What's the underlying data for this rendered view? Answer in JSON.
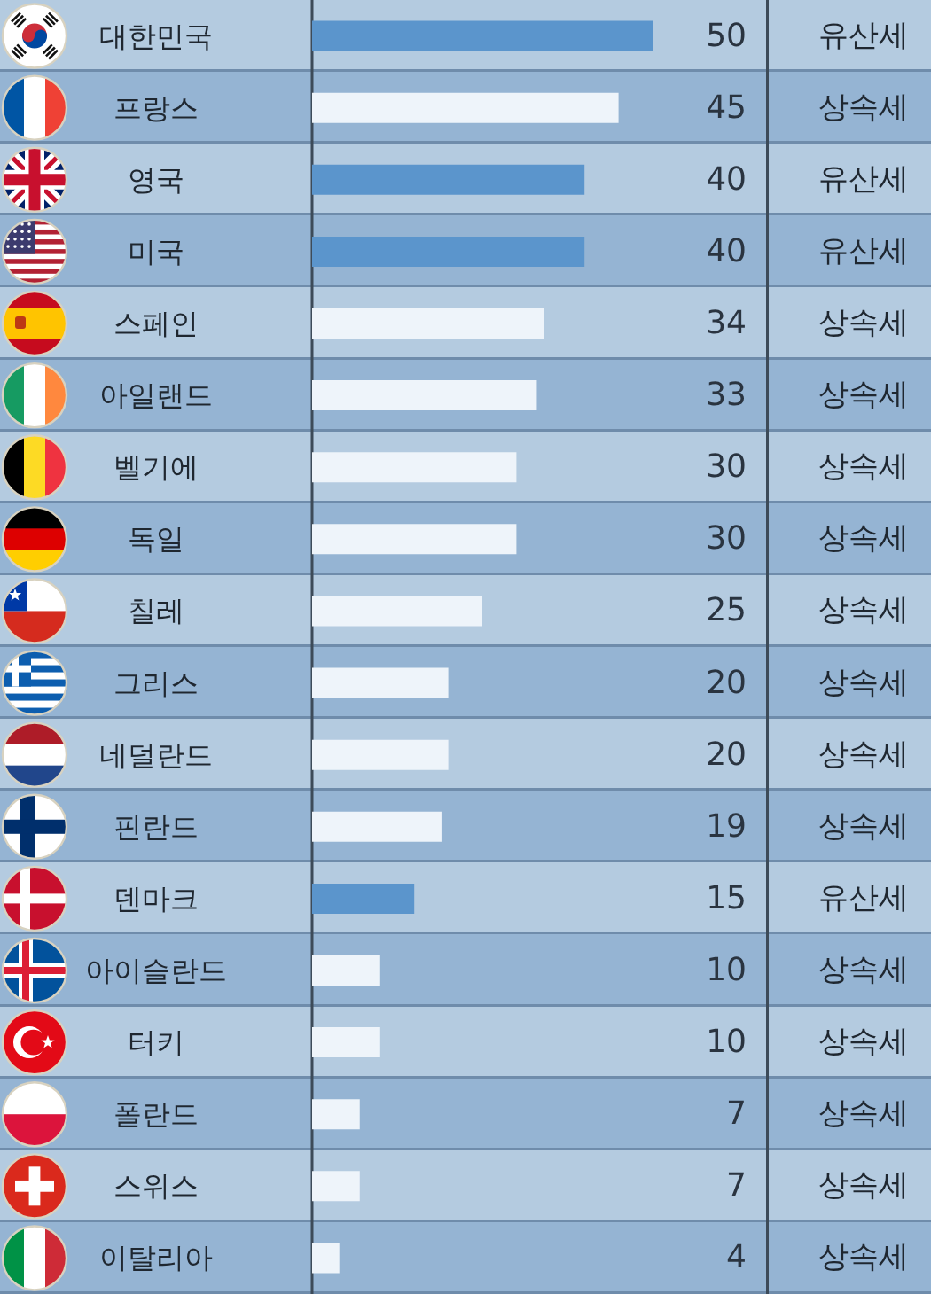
{
  "chart_data": {
    "type": "bar",
    "orientation": "horizontal",
    "categories": [
      "대한민국",
      "프랑스",
      "영국",
      "미국",
      "스페인",
      "아일랜드",
      "벨기에",
      "독일",
      "칠레",
      "그리스",
      "네덜란드",
      "핀란드",
      "덴마크",
      "아이슬란드",
      "터키",
      "폴란드",
      "스위스",
      "이탈리아"
    ],
    "values": [
      50,
      45,
      40,
      40,
      34,
      33,
      30,
      30,
      25,
      20,
      20,
      19,
      15,
      10,
      10,
      7,
      7,
      4
    ],
    "colors": [
      "#5b95cc",
      "#eef4fa",
      "#5b95cc",
      "#5b95cc",
      "#eef4fa",
      "#eef4fa",
      "#eef4fa",
      "#eef4fa",
      "#eef4fa",
      "#eef4fa",
      "#eef4fa",
      "#eef4fa",
      "#5b95cc",
      "#eef4fa",
      "#eef4fa",
      "#eef4fa",
      "#eef4fa",
      "#eef4fa"
    ],
    "y2_categories": [
      "유산세",
      "상속세",
      "유산세",
      "유산세",
      "상속세",
      "상속세",
      "상속세",
      "상속세",
      "상속세",
      "상속세",
      "상속세",
      "상속세",
      "유산세",
      "상속세",
      "상속세",
      "상속세",
      "상속세",
      "상속세"
    ],
    "xlim": [
      0,
      50
    ],
    "data_labels": true,
    "tick_labels": "y"
  }
}
